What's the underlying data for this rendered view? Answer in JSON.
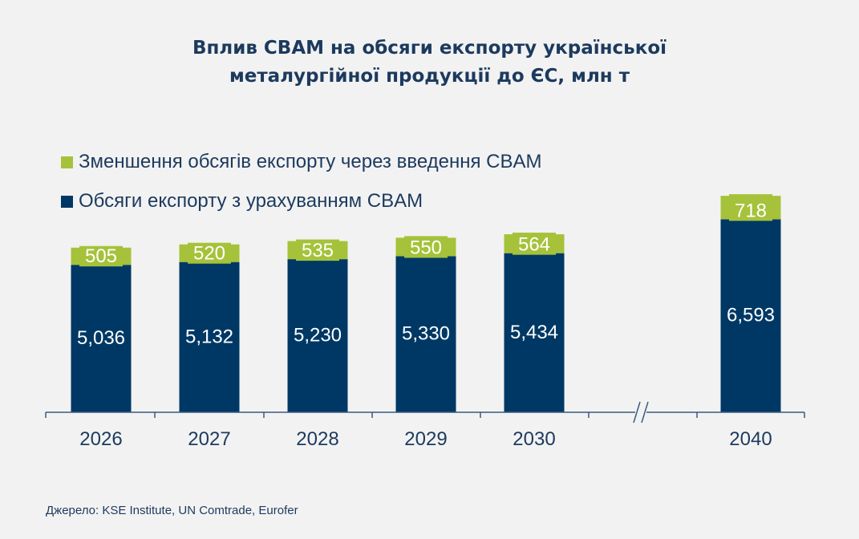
{
  "chart_data": {
    "type": "bar",
    "stacked": true,
    "title": "Вплив CBAM на обсяги експорту української металургійної продукції до ЄС, млн т",
    "title_lines": [
      "Вплив CBAM на обсяги експорту української",
      "металургійної продукції до ЄС, млн т"
    ],
    "categories": [
      "2026",
      "2027",
      "2028",
      "2029",
      "2030",
      "2040"
    ],
    "axis_break": "between 2030 and 2040",
    "series": [
      {
        "name": "Обсяги експорту з урахуванням CBAM",
        "color": "#003865",
        "values": [
          5036,
          5132,
          5230,
          5330,
          5434,
          6593
        ],
        "labels": [
          "5,036",
          "5,132",
          "5,230",
          "5,330",
          "5,434",
          "6,593"
        ]
      },
      {
        "name": "Зменшення обсягів експорту через введення CBAM",
        "color": "#a5c23a",
        "values": [
          505,
          520,
          535,
          550,
          564,
          718
        ],
        "labels": [
          "505",
          "520",
          "535",
          "550",
          "564",
          "718"
        ]
      }
    ],
    "legend_order": [
      1,
      0
    ],
    "legend_position": "top-left",
    "grid": false,
    "ylim": [
      0,
      7600
    ]
  },
  "source": "Джерело:  KSE Institute,  UN Comtrade,  Eurofer"
}
